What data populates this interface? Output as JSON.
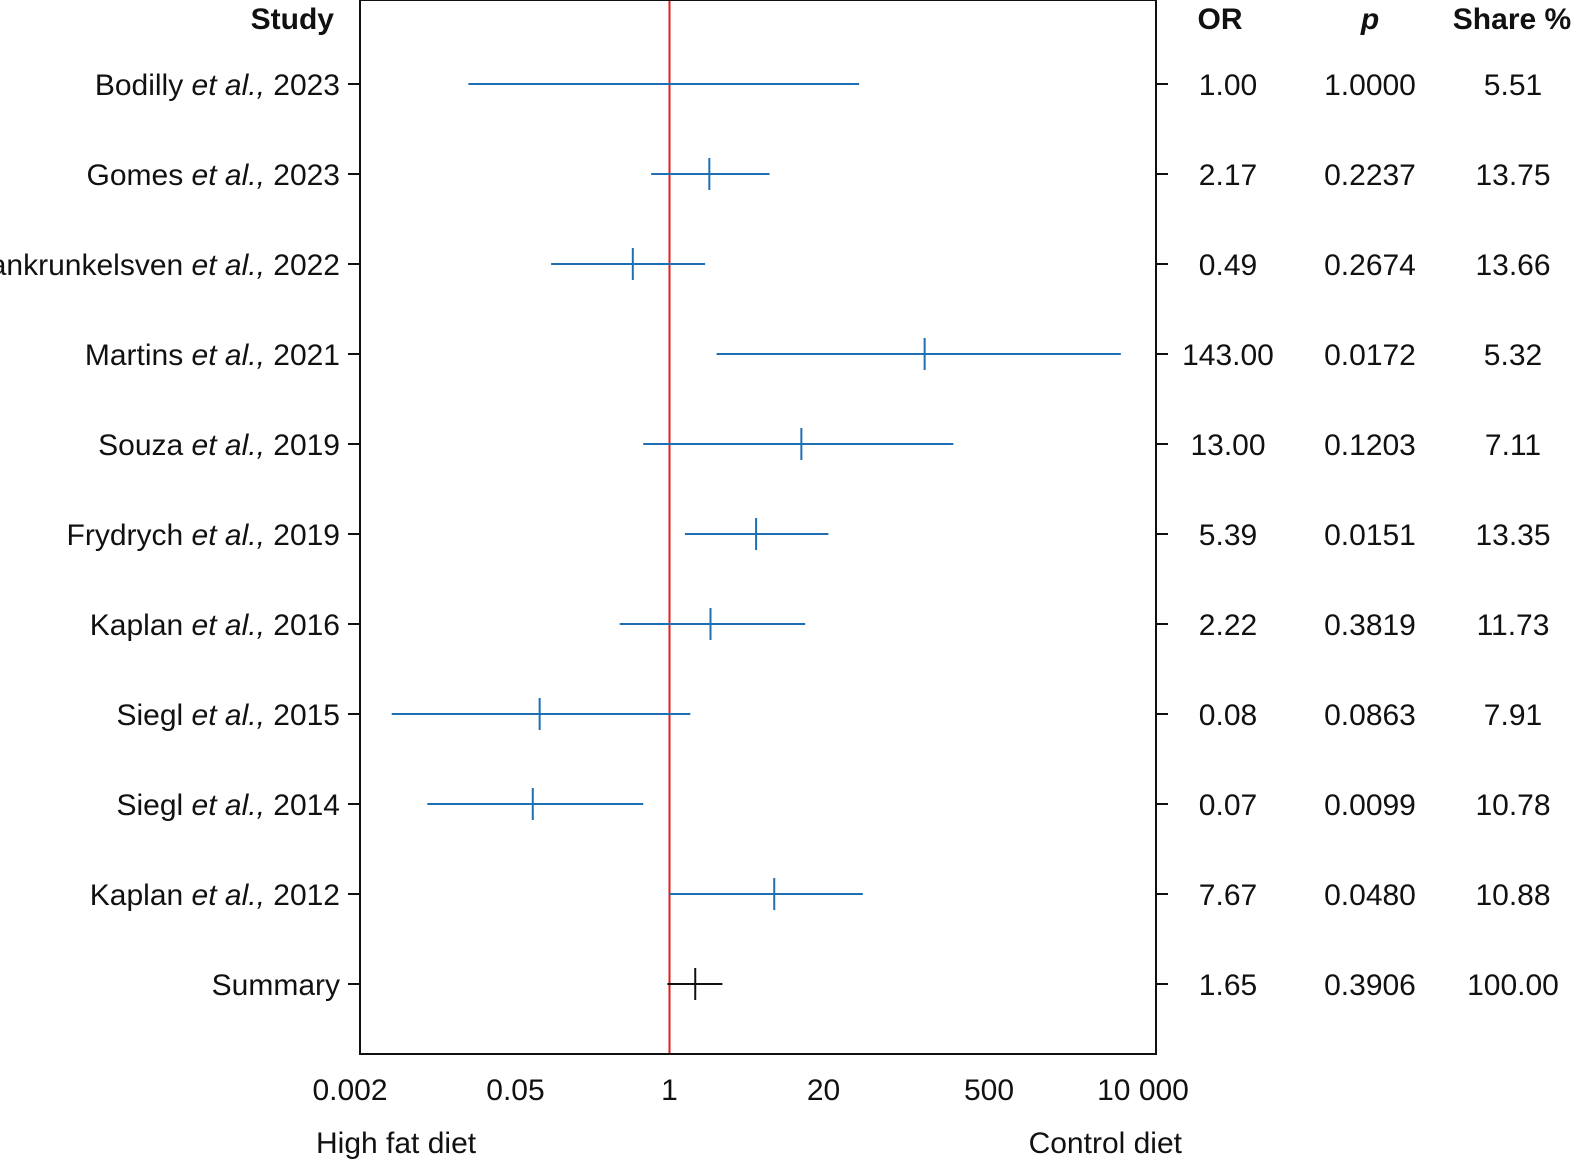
{
  "headers": {
    "study": "Study",
    "or": "OR",
    "p": "p",
    "share": "Share %"
  },
  "footer": {
    "left": "High fat diet",
    "right": "Control diet"
  },
  "colors": {
    "study": "#1f6fb4",
    "summary": "#111111",
    "reference_line": "#e02020",
    "frame": "#111111"
  },
  "chart_data": {
    "type": "forest",
    "x_scale": "log",
    "xlim": [
      0.002,
      10000
    ],
    "reference_value": 1,
    "x_ticks": [
      0.002,
      0.05,
      1,
      20,
      500,
      10000
    ],
    "x_tick_labels": [
      "0.002",
      "0.05",
      "1",
      "20",
      "500",
      "10 000"
    ],
    "rows": [
      {
        "author": "Bodilly",
        "etal": "et al.,",
        "year": "2023",
        "or": 1.0,
        "ci": [
          0.02,
          40
        ],
        "or_text": "1.00",
        "p_text": "1.0000",
        "share_text": "5.51",
        "summary": false,
        "show_point": false
      },
      {
        "author": "Gomes",
        "etal": "et al.,",
        "year": "2023",
        "or": 2.17,
        "ci": [
          0.7,
          7
        ],
        "or_text": "2.17",
        "p_text": "0.2237",
        "share_text": "13.75",
        "summary": false,
        "show_point": true
      },
      {
        "author": "Vankrunkelsven",
        "etal": "et al.,",
        "year": "2022",
        "or": 0.49,
        "ci": [
          0.1,
          2
        ],
        "or_text": "0.49",
        "p_text": "0.2674",
        "share_text": "13.66",
        "summary": false,
        "show_point": true
      },
      {
        "author": "Martins",
        "etal": "et al.,",
        "year": "2021",
        "or": 143.0,
        "ci": [
          2.5,
          6500
        ],
        "or_text": "143.00",
        "p_text": "0.0172",
        "share_text": "5.32",
        "summary": false,
        "show_point": true
      },
      {
        "author": "Souza",
        "etal": "et al.,",
        "year": "2019",
        "or": 13.0,
        "ci": [
          0.6,
          250
        ],
        "or_text": "13.00",
        "p_text": "0.1203",
        "share_text": "7.11",
        "summary": false,
        "show_point": true
      },
      {
        "author": "Frydrych",
        "etal": "et al.,",
        "year": "2019",
        "or": 5.39,
        "ci": [
          1.35,
          22
        ],
        "or_text": "5.39",
        "p_text": "0.0151",
        "share_text": "13.35",
        "summary": false,
        "show_point": true
      },
      {
        "author": "Kaplan",
        "etal": "et al.,",
        "year": "2016",
        "or": 2.22,
        "ci": [
          0.38,
          14
        ],
        "or_text": "2.22",
        "p_text": "0.3819",
        "share_text": "11.73",
        "summary": false,
        "show_point": true
      },
      {
        "author": "Siegl",
        "etal": "et al.,",
        "year": "2015",
        "or": 0.08,
        "ci": [
          0.0045,
          1.5
        ],
        "or_text": "0.08",
        "p_text": "0.0863",
        "share_text": "7.91",
        "summary": false,
        "show_point": true
      },
      {
        "author": "Siegl",
        "etal": "et al.,",
        "year": "2014",
        "or": 0.07,
        "ci": [
          0.009,
          0.6
        ],
        "or_text": "0.07",
        "p_text": "0.0099",
        "share_text": "10.78",
        "summary": false,
        "show_point": true
      },
      {
        "author": "Kaplan",
        "etal": "et al.,",
        "year": "2012",
        "or": 7.67,
        "ci": [
          1.0,
          43
        ],
        "or_text": "7.67",
        "p_text": "0.0480",
        "share_text": "10.88",
        "summary": false,
        "show_point": true
      },
      {
        "author": "Summary",
        "etal": "",
        "year": "",
        "or": 1.65,
        "ci": [
          0.96,
          2.8
        ],
        "or_text": "1.65",
        "p_text": "0.3906",
        "share_text": "100.00",
        "summary": true,
        "show_point": true
      }
    ]
  }
}
